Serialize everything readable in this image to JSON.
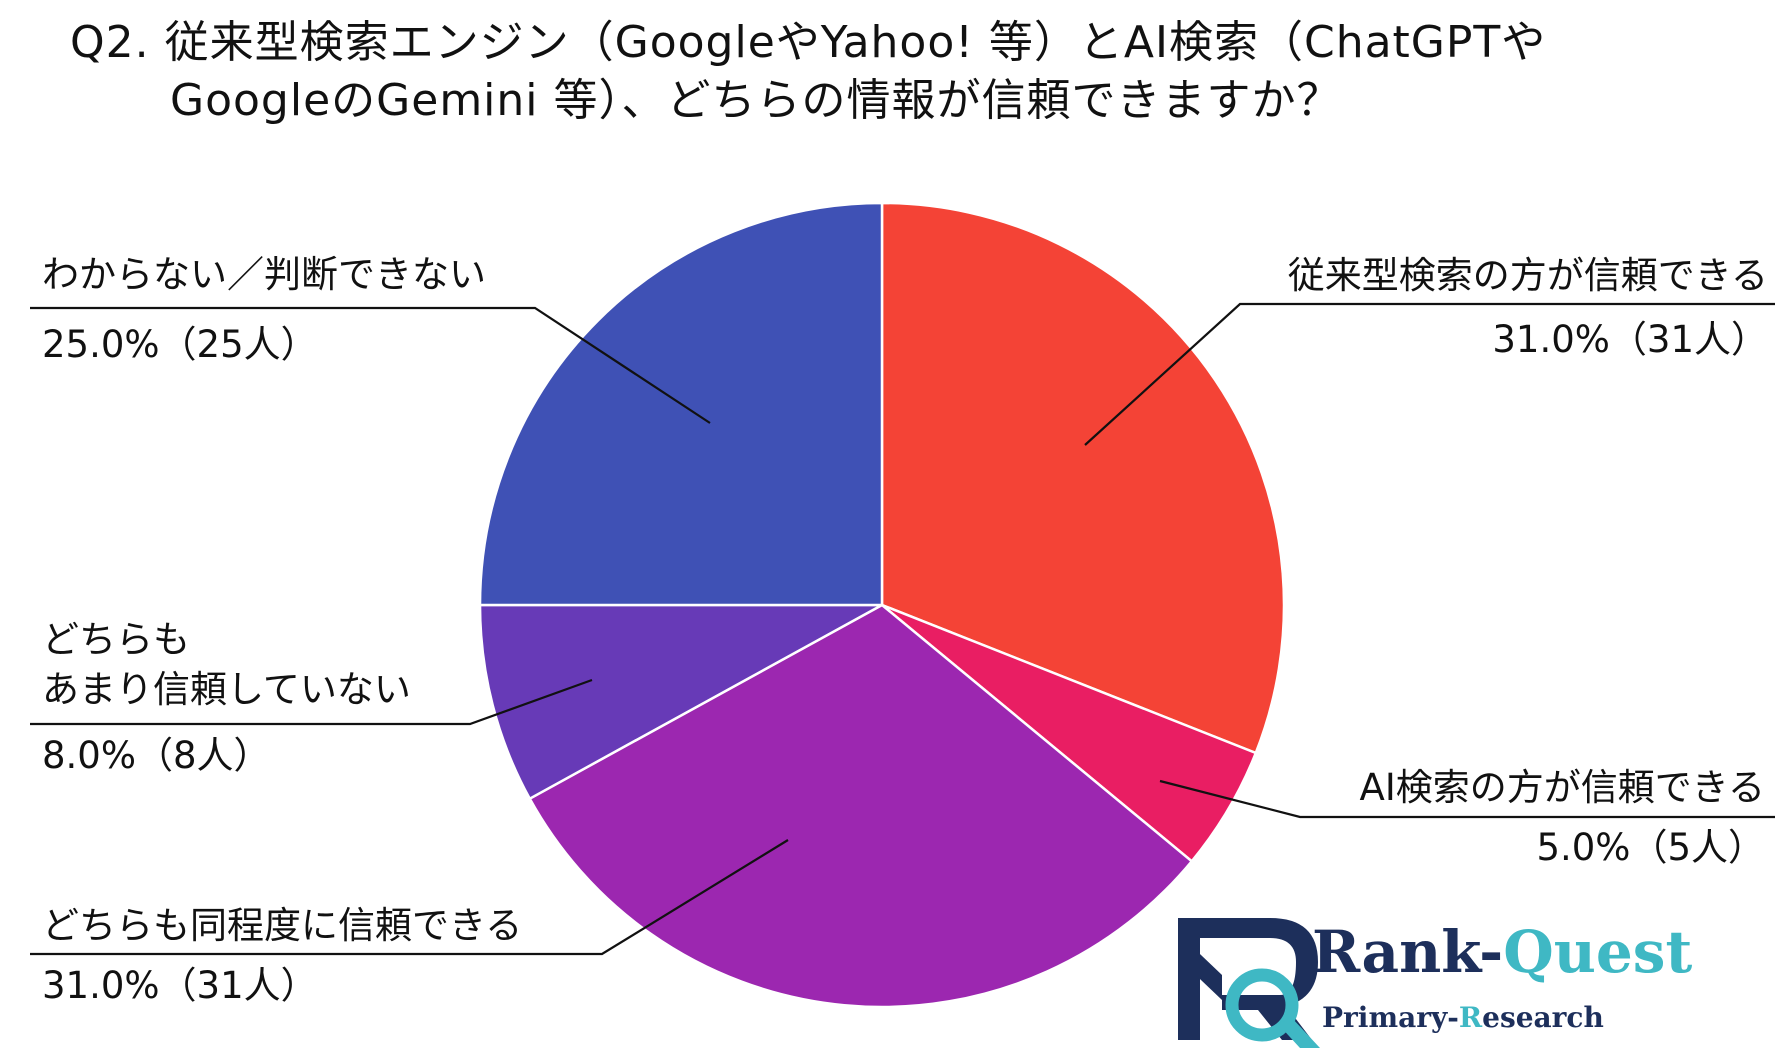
{
  "title": {
    "line1": "Q2. 従来型検索エンジン（GoogleやYahoo! 等）とAI検索（ChatGPTや",
    "line2": "GoogleのGemini 等）、どちらの情報が信頼できますか？"
  },
  "chart_data": {
    "type": "pie",
    "start": "12 o'clock",
    "direction": "clockwise",
    "unit": "%",
    "slices": [
      {
        "label": "従来型検索の方が信頼できる",
        "value": 31.0,
        "count_label": "31.0%（31人）",
        "color": "#f44336"
      },
      {
        "label": "AI検索の方が信頼できる",
        "value": 5.0,
        "count_label": "5.0%（5人）",
        "color": "#e91e63"
      },
      {
        "label": "どちらも同程度に信頼できる",
        "value": 31.0,
        "count_label": "31.0%（31人）",
        "color": "#9c27b0"
      },
      {
        "label": "どちらも\nあまり信頼していない",
        "value": 8.0,
        "count_label": "8.0%（8人）",
        "color": "#673ab7"
      },
      {
        "label": "わからない／判断できない",
        "value": 25.0,
        "count_label": "25.0%（25人）",
        "color": "#3f51b5"
      }
    ]
  },
  "logo": {
    "name": "Rank-Quest",
    "name_part1": "Rank-",
    "name_part2": "Quest",
    "tagline_part1": "Primary-",
    "tagline_r": "R",
    "tagline_part3": "esearch",
    "colors": {
      "navy": "#1d2f5b",
      "teal": "#3fb8c4"
    }
  }
}
